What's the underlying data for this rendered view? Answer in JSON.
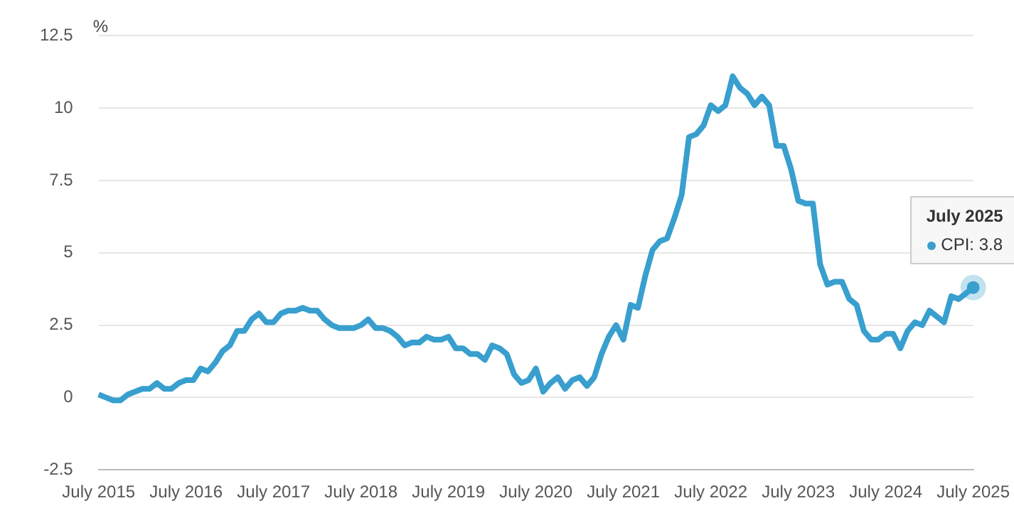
{
  "chart_data": {
    "type": "line",
    "ylabel": "%",
    "categories": [
      "July 2015",
      null,
      null,
      null,
      null,
      null,
      null,
      null,
      null,
      null,
      null,
      null,
      "July 2016",
      null,
      null,
      null,
      null,
      null,
      null,
      null,
      null,
      null,
      null,
      null,
      "July 2017",
      null,
      null,
      null,
      null,
      null,
      null,
      null,
      null,
      null,
      null,
      null,
      "July 2018",
      null,
      null,
      null,
      null,
      null,
      null,
      null,
      null,
      null,
      null,
      null,
      "July 2019",
      null,
      null,
      null,
      null,
      null,
      null,
      null,
      null,
      null,
      null,
      null,
      "July 2020",
      null,
      null,
      null,
      null,
      null,
      null,
      null,
      null,
      null,
      null,
      null,
      "July 2021",
      null,
      null,
      null,
      null,
      null,
      null,
      null,
      null,
      null,
      null,
      null,
      "July 2022",
      null,
      null,
      null,
      null,
      null,
      null,
      null,
      null,
      null,
      null,
      null,
      "July 2023",
      null,
      null,
      null,
      null,
      null,
      null,
      null,
      null,
      null,
      null,
      null,
      "July 2024",
      null,
      null,
      null,
      null,
      null,
      null,
      null,
      null,
      null,
      null,
      null,
      "July 2025"
    ],
    "series": [
      {
        "color": "#389fce",
        "values": [
          0.1,
          0.0,
          -0.1,
          -0.1,
          0.1,
          0.2,
          0.3,
          0.3,
          0.5,
          0.3,
          0.3,
          0.5,
          0.6,
          0.6,
          1.0,
          0.9,
          1.2,
          1.6,
          1.8,
          2.3,
          2.3,
          2.7,
          2.9,
          2.6,
          2.6,
          2.9,
          3.0,
          3.0,
          3.1,
          3.0,
          3.0,
          2.7,
          2.5,
          2.4,
          2.4,
          2.4,
          2.5,
          2.7,
          2.4,
          2.4,
          2.3,
          2.1,
          1.8,
          1.9,
          1.9,
          2.1,
          2.0,
          2.0,
          2.1,
          1.7,
          1.7,
          1.5,
          1.5,
          1.3,
          1.8,
          1.7,
          1.5,
          0.8,
          0.5,
          0.6,
          1.0,
          0.2,
          0.5,
          0.7,
          0.3,
          0.6,
          0.7,
          0.4,
          0.7,
          1.5,
          2.1,
          2.5,
          2.0,
          3.2,
          3.1,
          4.2,
          5.1,
          5.4,
          5.5,
          6.2,
          7.0,
          9.0,
          9.1,
          9.4,
          10.1,
          9.9,
          10.1,
          11.1,
          10.7,
          10.5,
          10.1,
          10.4,
          10.1,
          8.7,
          8.7,
          7.9,
          6.8,
          6.7,
          6.7,
          4.6,
          3.9,
          4.0,
          4.0,
          3.4,
          3.2,
          2.3,
          2.0,
          2.0,
          2.2,
          2.2,
          1.7,
          2.3,
          2.6,
          2.5,
          3.0,
          2.8,
          2.6,
          3.5,
          3.4,
          3.6,
          3.8
        ]
      }
    ],
    "ylim": [
      -2.5,
      12.5
    ],
    "yticks": [
      -2.5,
      0,
      2.5,
      5,
      7.5,
      10,
      12.5
    ],
    "grid": "y",
    "legend": false,
    "marker": "none",
    "line_style": "solid",
    "annotations": [
      "July 2025",
      "CPI: 3.8"
    ]
  }
}
